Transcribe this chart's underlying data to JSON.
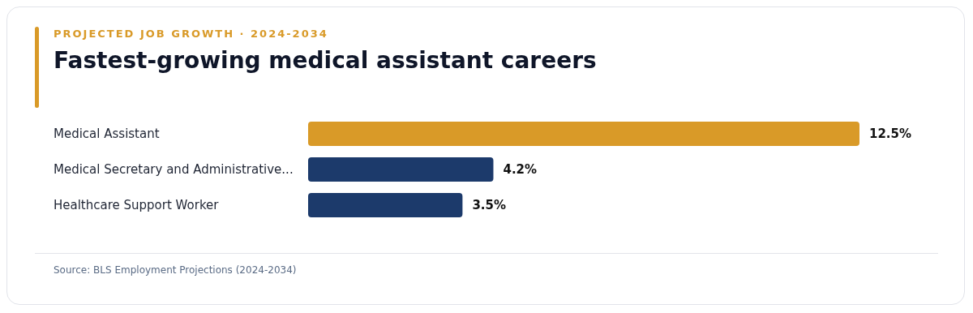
{
  "chart_data": {
    "type": "bar",
    "orientation": "horizontal",
    "subtitle": "PROJECTED JOB GROWTH · 2024-2034",
    "title": "Fastest-growing medical assistant careers",
    "categories": [
      "Medical Assistant",
      "Medical Secretary and Administrative...",
      "Healthcare Support Worker"
    ],
    "values": [
      12.5,
      4.2,
      3.5
    ],
    "colors": [
      "#d99a28",
      "#1c3a6b",
      "#1c3a6b"
    ],
    "value_labels": [
      "12.5%",
      "4.2%",
      "3.5%"
    ],
    "annotations": [
      "Source: BLS Employment Projections (2024-2034)"
    ]
  }
}
